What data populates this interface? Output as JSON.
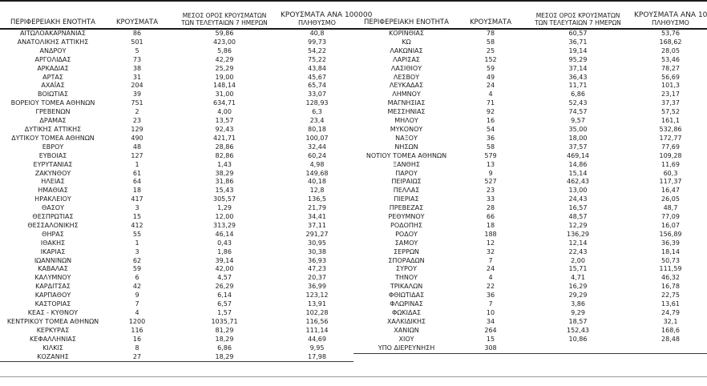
{
  "colors": {
    "text": "#1c1c1c",
    "rule_dark": "#1a1a1a",
    "rule_light": "#9a9a9a",
    "background": "#ffffff"
  },
  "chart_data": {
    "type": "table",
    "title": "",
    "columns": {
      "region": "ΠΕΡΙΦΕΡΕΙΑΚΗ ΕΝΟΤΗΤΑ",
      "cases": "ΚΡΟΥΣΜΑΤΑ",
      "avg7_line1": "ΜΕΣΟΣ ΟΡΟΣ ΚΡΟΥΣΜΑΤΩΝ",
      "avg7_line2": "ΤΩΝ ΤΕΛΕΥΤΑΙΩΝ 7 ΗΜΕΡΩΝ",
      "per100k_line1": "ΚΡΟΥΣΜΑΤΑ ΑΝΑ 100000",
      "per100k_line2": "ΠΛΗΘΥΣΜΟ"
    },
    "left_rows": [
      [
        "ΑΙΤΩΛΟΑΚΑΡΝΑΝΙΑΣ",
        "86",
        "59,86",
        "40,8"
      ],
      [
        "ΑΝΑΤΟΛΙΚΗΣ ΑΤΤΙΚΗΣ",
        "501",
        "423,00",
        "99,73"
      ],
      [
        "ΑΝΔΡΟΥ",
        "5",
        "5,86",
        "54,22"
      ],
      [
        "ΑΡΓΟΛΙΔΑΣ",
        "73",
        "42,29",
        "75,22"
      ],
      [
        "ΑΡΚΑΔΙΑΣ",
        "38",
        "25,29",
        "43,84"
      ],
      [
        "ΑΡΤΑΣ",
        "31",
        "19,00",
        "45,67"
      ],
      [
        "ΑΧΑΪΑΣ",
        "204",
        "148,14",
        "65,74"
      ],
      [
        "ΒΟΙΩΤΙΑΣ",
        "39",
        "31,00",
        "33,07"
      ],
      [
        "ΒΟΡΕΙΟΥ ΤΟΜΕΑ ΑΘΗΝΩΝ",
        "751",
        "634,71",
        "128,93"
      ],
      [
        "ΓΡΕΒΕΝΩΝ",
        "2",
        "4,00",
        "6,3"
      ],
      [
        "ΔΡΑΜΑΣ",
        "23",
        "13,57",
        "23,4"
      ],
      [
        "ΔΥΤΙΚΗΣ ΑΤΤΙΚΗΣ",
        "129",
        "92,43",
        "80,18"
      ],
      [
        "ΔΥΤΙΚΟΥ ΤΟΜΕΑ ΑΘΗΝΩΝ",
        "490",
        "421,71",
        "100,07"
      ],
      [
        "ΕΒΡΟΥ",
        "48",
        "28,86",
        "32,44"
      ],
      [
        "ΕΥΒΟΙΑΣ",
        "127",
        "82,86",
        "60,24"
      ],
      [
        "ΕΥΡΥΤΑΝΙΑΣ",
        "1",
        "1,43",
        "4,98"
      ],
      [
        "ΖΑΚΥΝΘΟΥ",
        "61",
        "38,29",
        "149,68"
      ],
      [
        "ΗΛΕΙΑΣ",
        "64",
        "31,86",
        "40,18"
      ],
      [
        "ΗΜΑΘΙΑΣ",
        "18",
        "15,43",
        "12,8"
      ],
      [
        "ΗΡΑΚΛΕΙΟΥ",
        "417",
        "305,57",
        "136,5"
      ],
      [
        "ΘΑΣΟΥ",
        "3",
        "1,29",
        "21,79"
      ],
      [
        "ΘΕΣΠΡΩΤΙΑΣ",
        "15",
        "12,00",
        "34,41"
      ],
      [
        "ΘΕΣΣΑΛΟΝΙΚΗΣ",
        "412",
        "313,29",
        "37,11"
      ],
      [
        "ΘΗΡΑΣ",
        "55",
        "46,14",
        "291,27"
      ],
      [
        "ΙΘΑΚΗΣ",
        "1",
        "0,43",
        "30,95"
      ],
      [
        "ΙΚΑΡΙΑΣ",
        "3",
        "1,86",
        "30,38"
      ],
      [
        "ΙΩΑΝΝΙΝΩΝ",
        "62",
        "39,14",
        "36,93"
      ],
      [
        "ΚΑΒΑΛΑΣ",
        "59",
        "42,00",
        "47,23"
      ],
      [
        "ΚΑΛΥΜΝΟΥ",
        "6",
        "4,57",
        "20,37"
      ],
      [
        "ΚΑΡΔΙΤΣΑΣ",
        "42",
        "26,29",
        "36,99"
      ],
      [
        "ΚΑΡΠΑΘΟΥ",
        "9",
        "6,14",
        "123,12"
      ],
      [
        "ΚΑΣΤΟΡΙΑΣ",
        "7",
        "6,57",
        "13,91"
      ],
      [
        "ΚΕΑΣ - ΚΥΘΝΟΥ",
        "4",
        "1,57",
        "102,28"
      ],
      [
        "ΚΕΝΤΡΙΚΟΥ ΤΟΜΕΑ ΑΘΗΝΩΝ",
        "1200",
        "1035,71",
        "116,56"
      ],
      [
        "ΚΕΡΚΥΡΑΣ",
        "116",
        "81,29",
        "111,14"
      ],
      [
        "ΚΕΦΑΛΛΗΝΙΑΣ",
        "16",
        "18,29",
        "44,69"
      ],
      [
        "ΚΙΛΚΙΣ",
        "8",
        "6,86",
        "9,95"
      ],
      [
        "ΚΟΖΑΝΗΣ",
        "27",
        "18,29",
        "17,98"
      ]
    ],
    "right_rows": [
      [
        "ΚΟΡΙΝΘΙΑΣ",
        "78",
        "60,57",
        "53,76"
      ],
      [
        "ΚΩ",
        "58",
        "36,71",
        "168,62"
      ],
      [
        "ΛΑΚΩΝΙΑΣ",
        "25",
        "19,14",
        "28,05"
      ],
      [
        "ΛΑΡΙΣΑΣ",
        "152",
        "95,29",
        "53,46"
      ],
      [
        "ΛΑΣΙΘΙΟΥ",
        "59",
        "37,14",
        "78,27"
      ],
      [
        "ΛΕΣΒΟΥ",
        "49",
        "36,43",
        "56,69"
      ],
      [
        "ΛΕΥΚΑΔΑΣ",
        "24",
        "11,71",
        "101,3"
      ],
      [
        "ΛΗΜΝΟΥ",
        "4",
        "6,86",
        "23,17"
      ],
      [
        "ΜΑΓΝΗΣΙΑΣ",
        "71",
        "52,43",
        "37,37"
      ],
      [
        "ΜΕΣΣΗΝΙΑΣ",
        "92",
        "74,57",
        "57,52"
      ],
      [
        "ΜΗΛΟΥ",
        "16",
        "9,57",
        "161,1"
      ],
      [
        "ΜΥΚΟΝΟΥ",
        "54",
        "35,00",
        "532,86"
      ],
      [
        "ΝΑΞΟΥ",
        "36",
        "18,00",
        "172,77"
      ],
      [
        "ΝΗΣΩΝ",
        "58",
        "37,57",
        "77,69"
      ],
      [
        "ΝΟΤΙΟΥ ΤΟΜΕΑ ΑΘΗΝΩΝ",
        "579",
        "469,14",
        "109,28"
      ],
      [
        "ΞΑΝΘΗΣ",
        "13",
        "14,86",
        "11,69"
      ],
      [
        "ΠΑΡΟΥ",
        "9",
        "15,14",
        "60,3"
      ],
      [
        "ΠΕΙΡΑΙΩΣ",
        "527",
        "462,43",
        "117,37"
      ],
      [
        "ΠΕΛΛΑΣ",
        "23",
        "13,00",
        "16,47"
      ],
      [
        "ΠΙΕΡΙΑΣ",
        "33",
        "24,43",
        "26,05"
      ],
      [
        "ΠΡΕΒΕΖΑΣ",
        "28",
        "16,57",
        "48,7"
      ],
      [
        "ΡΕΘΥΜΝΟΥ",
        "66",
        "48,57",
        "77,09"
      ],
      [
        "ΡΟΔΟΠΗΣ",
        "18",
        "12,29",
        "16,07"
      ],
      [
        "ΡΟΔΟΥ",
        "188",
        "136,29",
        "156,89"
      ],
      [
        "ΣΑΜΟΥ",
        "12",
        "12,14",
        "36,39"
      ],
      [
        "ΣΕΡΡΩΝ",
        "32",
        "22,43",
        "18,14"
      ],
      [
        "ΣΠΟΡΑΔΩΝ",
        "7",
        "2,00",
        "50,73"
      ],
      [
        "ΣΥΡΟΥ",
        "24",
        "15,71",
        "111,59"
      ],
      [
        "ΤΗΝΟΥ",
        "4",
        "4,71",
        "46,32"
      ],
      [
        "ΤΡΙΚΑΛΩΝ",
        "22",
        "16,29",
        "16,78"
      ],
      [
        "ΦΘΙΩΤΙΔΑΣ",
        "36",
        "29,29",
        "22,75"
      ],
      [
        "ΦΛΩΡΙΝΑΣ",
        "7",
        "3,86",
        "13,61"
      ],
      [
        "ΦΩΚΙΔΑΣ",
        "10",
        "9,29",
        "24,79"
      ],
      [
        "ΧΑΛΚΙΔΙΚΗΣ",
        "34",
        "18,57",
        "32,1"
      ],
      [
        "ΧΑΝΙΩΝ",
        "264",
        "152,43",
        "168,6"
      ],
      [
        "ΧΙΟΥ",
        "15",
        "10,86",
        "28,48"
      ],
      [
        "ΥΠΟ ΔΙΕΡΕΥΝΗΣΗ",
        "308",
        "",
        ""
      ]
    ]
  }
}
